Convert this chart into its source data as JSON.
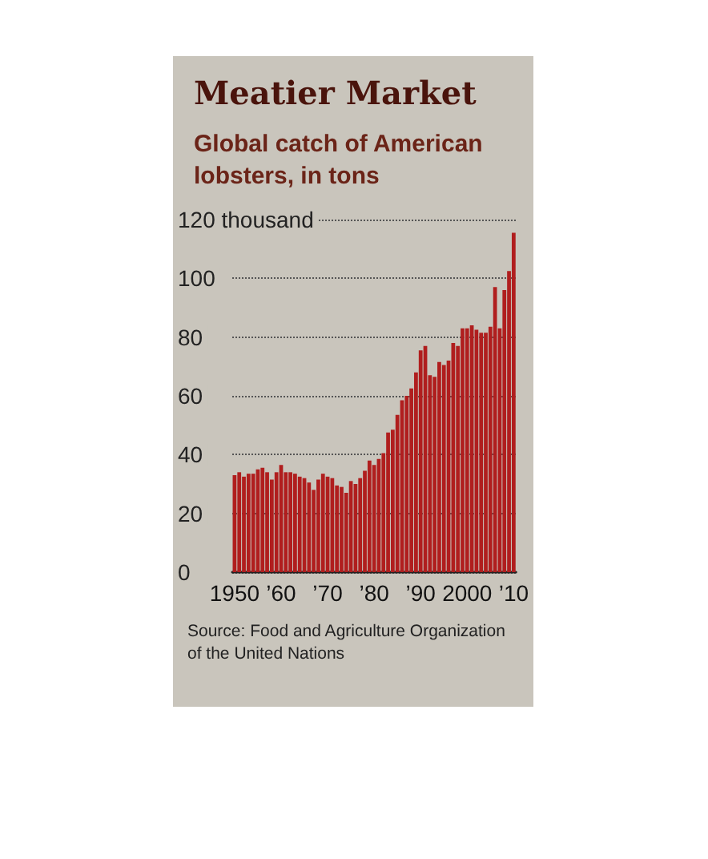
{
  "chart_data": {
    "type": "bar",
    "title": "Meatier Market",
    "subtitle": "Global catch of American lobsters, in tons",
    "categories": [
      "1950",
      null,
      null,
      null,
      null,
      null,
      null,
      null,
      null,
      null,
      "’60",
      null,
      null,
      null,
      null,
      null,
      null,
      null,
      null,
      null,
      "’70",
      null,
      null,
      null,
      null,
      null,
      null,
      null,
      null,
      null,
      "’80",
      null,
      null,
      null,
      null,
      null,
      null,
      null,
      null,
      null,
      "’90",
      null,
      null,
      null,
      null,
      null,
      null,
      null,
      null,
      null,
      "2000",
      null,
      null,
      null,
      null,
      null,
      null,
      null,
      null,
      null,
      "’10"
    ],
    "values": [
      33,
      34,
      32.5,
      33.5,
      33.5,
      35,
      35.5,
      34,
      31.5,
      34,
      36.5,
      34,
      34,
      33.5,
      32.5,
      32,
      30.5,
      28,
      31.5,
      33.5,
      32.5,
      32,
      29.5,
      29,
      27,
      31,
      30,
      32,
      34.5,
      38,
      36.5,
      38.5,
      40.5,
      47.5,
      48.5,
      53.5,
      58.5,
      60,
      62.5,
      68,
      75.5,
      77,
      67,
      66.5,
      71.5,
      70.5,
      72,
      78,
      77,
      83,
      83,
      84,
      82.5,
      81.5,
      81.5,
      83.5,
      97,
      83,
      96,
      102.5,
      115.5
    ],
    "color": "#b01e1e",
    "ylim": [
      0,
      120
    ],
    "yticks": [
      0,
      20,
      40,
      60,
      80,
      100,
      {
        "value": 120,
        "label": "120 thousand"
      }
    ],
    "grid": "y",
    "line_style": "dotted",
    "annotations": [
      "Source: Food and Agriculture Organization\nof the United Nations"
    ]
  }
}
